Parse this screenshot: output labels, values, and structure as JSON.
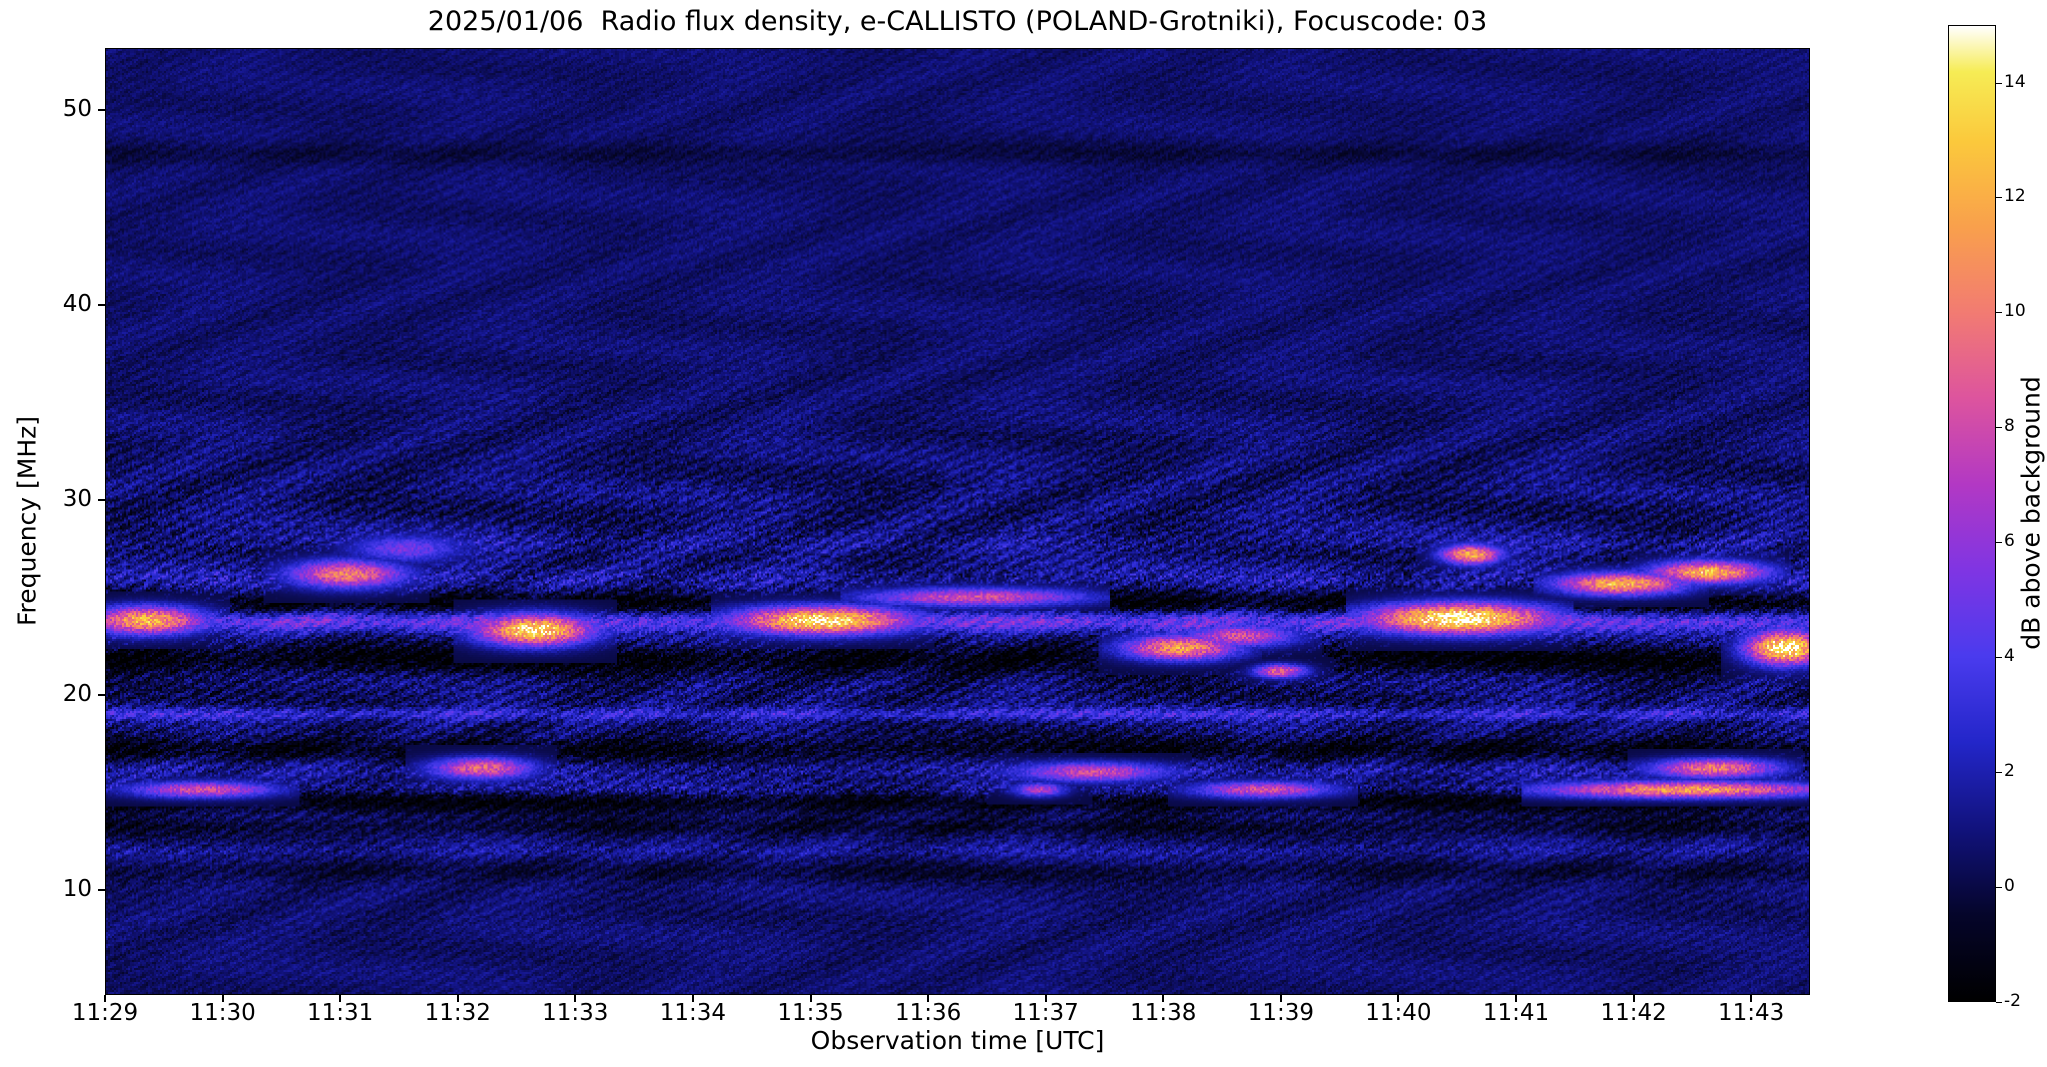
{
  "figure": {
    "title": "2025/01/06  Radio flux density, e-CALLISTO (POLAND-Grotniki), Focuscode: 03",
    "xlabel": "Observation time [UTC]",
    "ylabel": "Frequency [MHz]",
    "colorbar_label": "dB above background"
  },
  "observation": {
    "date": "2025/01/06",
    "instrument": "e-CALLISTO",
    "station": "POLAND-Grotniki",
    "focuscode": "03"
  },
  "chart_data": {
    "type": "heatmap",
    "title": "2025/01/06  Radio flux density, e-CALLISTO (POLAND-Grotniki), Focuscode: 03",
    "xlabel": "Observation time [UTC]",
    "ylabel": "Frequency [MHz]",
    "x_tick_labels": [
      "11:29",
      "11:30",
      "11:31",
      "11:32",
      "11:33",
      "11:34",
      "11:35",
      "11:36",
      "11:37",
      "11:38",
      "11:39",
      "11:40",
      "11:41",
      "11:42",
      "11:43"
    ],
    "x_tick_minutes": [
      0,
      1,
      2,
      3,
      4,
      5,
      6,
      7,
      8,
      9,
      10,
      11,
      12,
      13,
      14
    ],
    "xlim_minutes": [
      0,
      14.5
    ],
    "x_start": "11:29",
    "y_ticks": [
      10,
      20,
      30,
      40,
      50
    ],
    "ylim": [
      4.6,
      53.2
    ],
    "grid": false,
    "legend": "none",
    "background_level_db": 0.7,
    "colorbar": {
      "label": "dB above background",
      "ticks": [
        -2,
        0,
        2,
        4,
        6,
        8,
        10,
        12,
        14
      ],
      "range": [
        -2,
        15
      ],
      "position": "right",
      "colormap": "gnuplot2-like (black-blue-magenta-orange-yellow-white)",
      "stops": [
        [
          -2,
          "#000000"
        ],
        [
          -0.5,
          "#05052a"
        ],
        [
          1,
          "#11127c"
        ],
        [
          2.5,
          "#2326c9"
        ],
        [
          4,
          "#4a3bee"
        ],
        [
          5.5,
          "#7f35e3"
        ],
        [
          7,
          "#b238c4"
        ],
        [
          8.5,
          "#dd549e"
        ],
        [
          10,
          "#f27b72"
        ],
        [
          11.5,
          "#f9a04c"
        ],
        [
          13,
          "#fbc93c"
        ],
        [
          14.2,
          "#f6ec55"
        ],
        [
          15,
          "#ffffff"
        ]
      ]
    },
    "features": {
      "texture": "diagonal interference striping over dark blue background, strongest 13-30 MHz, fainter above 31 MHz",
      "dark_bands": {
        "columns": [
          "freq_mhz",
          "half_width_mhz",
          "depth_db"
        ],
        "rows": [
          [
            24.7,
            0.45,
            2.4
          ],
          [
            21.8,
            0.55,
            2.2
          ],
          [
            17.2,
            0.4,
            1.9
          ],
          [
            14.55,
            0.45,
            2.1
          ],
          [
            13.2,
            0.3,
            1.3
          ],
          [
            10.9,
            0.35,
            1.0
          ],
          [
            47.8,
            0.4,
            0.8
          ]
        ]
      },
      "bright_bands": {
        "columns": [
          "freq_mhz",
          "half_width_mhz",
          "intensity_db",
          "speckled"
        ],
        "rows": [
          [
            23.75,
            0.4,
            4.2,
            0
          ],
          [
            19.0,
            0.22,
            2.3,
            0
          ],
          [
            16.1,
            0.3,
            1.6,
            1
          ],
          [
            15.1,
            0.3,
            2.0,
            1
          ],
          [
            12.0,
            0.25,
            1.3,
            1
          ],
          [
            25.9,
            0.45,
            1.6,
            1
          ],
          [
            27.8,
            0.35,
            1.2,
            1
          ]
        ]
      },
      "bursts": {
        "columns": [
          "t_start_min_after_1129",
          "t_end_min",
          "freq_mhz",
          "peak_db",
          "freq_half_width_mhz"
        ],
        "rows": [
          [
            0.0,
            0.7,
            23.8,
            12,
            0.5
          ],
          [
            1.7,
            2.4,
            26.2,
            10,
            0.5
          ],
          [
            2.2,
            2.9,
            27.5,
            5,
            0.5
          ],
          [
            3.3,
            4.0,
            23.3,
            14,
            0.55
          ],
          [
            2.9,
            3.5,
            16.2,
            9,
            0.4
          ],
          [
            5.5,
            6.7,
            23.8,
            14,
            0.5
          ],
          [
            6.6,
            8.2,
            25.0,
            8,
            0.35
          ],
          [
            7.9,
            8.9,
            16.0,
            8,
            0.35
          ],
          [
            7.85,
            8.05,
            15.1,
            7,
            0.25
          ],
          [
            8.8,
            9.5,
            22.4,
            11,
            0.45
          ],
          [
            9.3,
            10.0,
            23.0,
            8,
            0.4
          ],
          [
            9.9,
            10.1,
            21.2,
            9,
            0.25
          ],
          [
            10.9,
            12.15,
            23.9,
            15,
            0.55
          ],
          [
            11.5,
            11.75,
            27.2,
            12,
            0.35
          ],
          [
            12.5,
            13.3,
            25.7,
            12,
            0.4
          ],
          [
            13.3,
            14.0,
            26.3,
            12,
            0.4
          ],
          [
            13.3,
            14.1,
            16.2,
            10,
            0.35
          ],
          [
            12.4,
            14.5,
            15.1,
            11,
            0.3
          ],
          [
            14.1,
            14.5,
            22.4,
            15,
            0.6
          ],
          [
            0.35,
            1.3,
            15.1,
            8,
            0.3
          ],
          [
            9.4,
            10.3,
            15.1,
            8,
            0.3
          ]
        ]
      }
    }
  }
}
